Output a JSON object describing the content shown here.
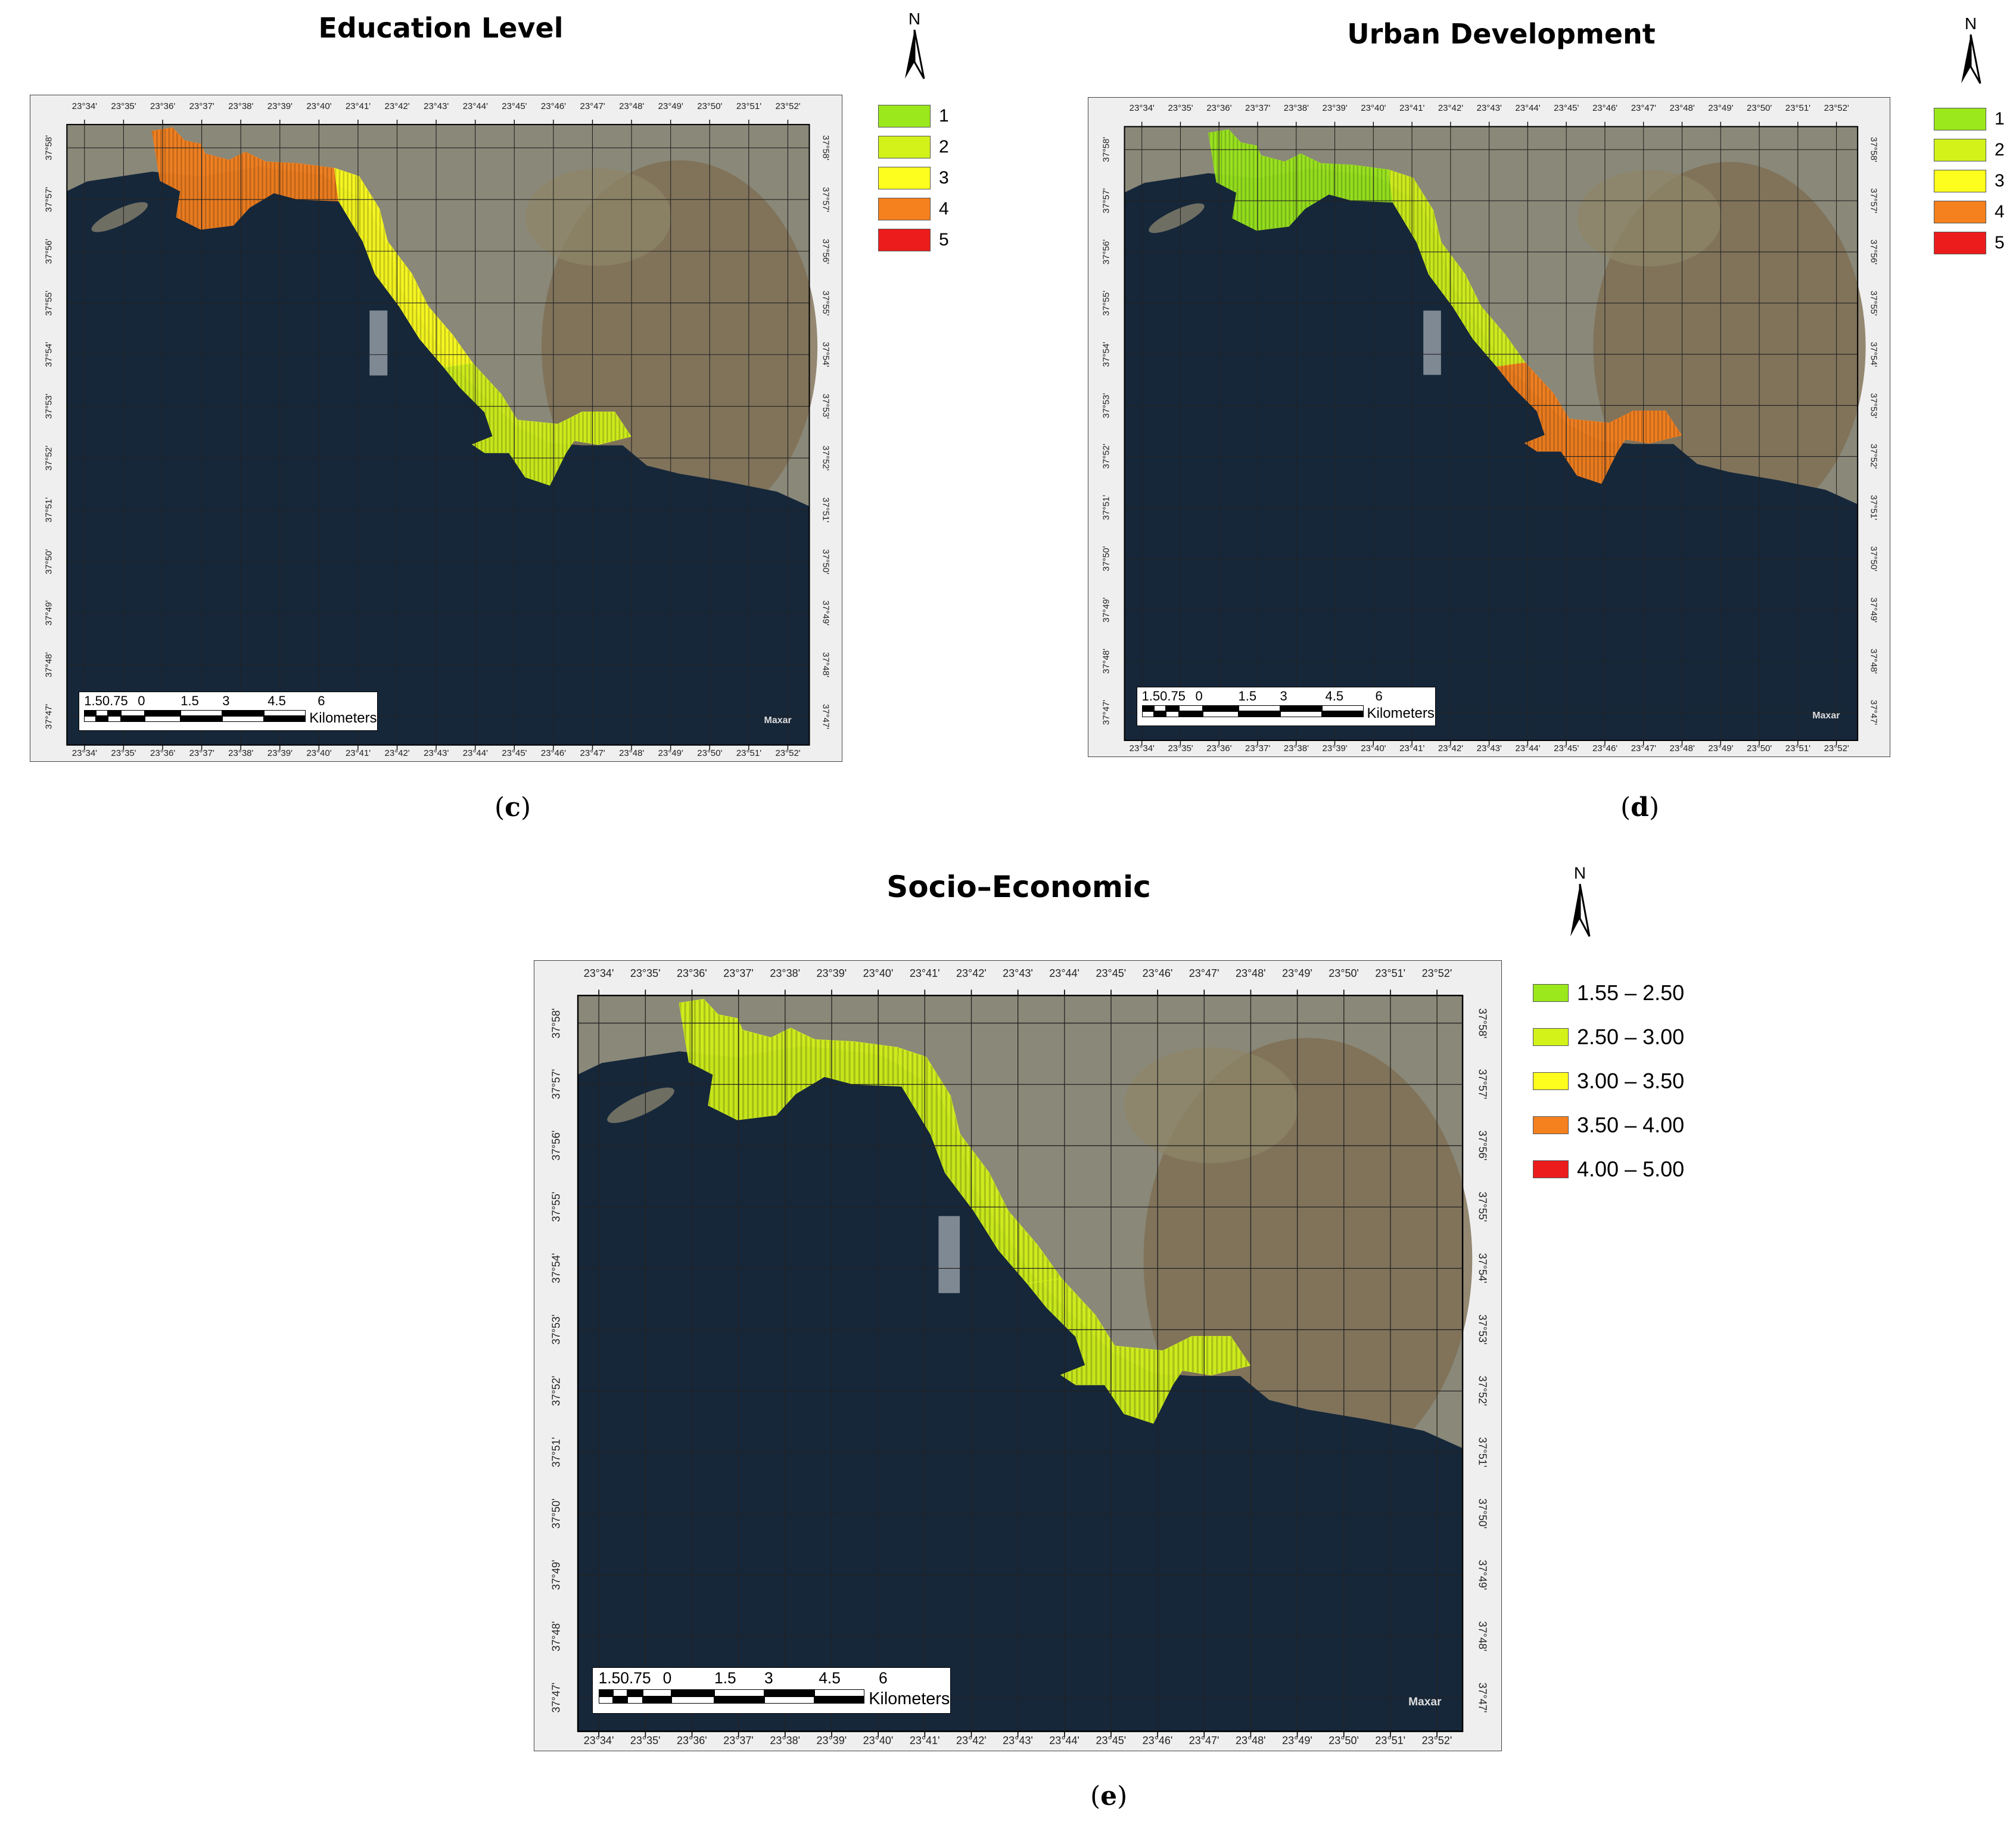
{
  "panels": {
    "c": {
      "title": "Education Level",
      "caption_open": "(",
      "caption_letter": "c",
      "caption_close": ")",
      "legend": [
        "1",
        "2",
        "3",
        "4",
        "5"
      ],
      "coastal_class_segments": [
        4,
        3,
        2
      ]
    },
    "d": {
      "title": "Urban Development",
      "caption_open": "(",
      "caption_letter": "d",
      "caption_close": ")",
      "legend": [
        "1",
        "2",
        "3",
        "4",
        "5"
      ],
      "coastal_class_segments": [
        1,
        2,
        4
      ]
    },
    "e": {
      "title": "Socio–Economic",
      "caption_open": "(",
      "caption_letter": "e",
      "caption_close": ")",
      "legend": [
        "1.55 – 2.50",
        "2.50 – 3.00",
        "3.00 – 3.50",
        "3.50 – 4.00",
        "4.00 – 5.00"
      ],
      "coastal_class_segments": [
        2,
        2,
        2
      ]
    }
  },
  "legend_colors": [
    "#9be81c",
    "#d2f21a",
    "#fdfd1e",
    "#f5801e",
    "#ec1c1c"
  ],
  "north_label": "N",
  "lon_ticks": [
    "23°34'",
    "23°35'",
    "23°36'",
    "23°37'",
    "23°38'",
    "23°39'",
    "23°40'",
    "23°41'",
    "23°42'",
    "23°43'",
    "23°44'",
    "23°45'",
    "23°46'",
    "23°47'",
    "23°48'",
    "23°49'",
    "23°50'",
    "23°51'",
    "23°52'"
  ],
  "lat_ticks": [
    "37°58'",
    "37°57'",
    "37°56'",
    "37°55'",
    "37°54'",
    "37°53'",
    "37°52'",
    "37°51'",
    "37°50'",
    "37°49'",
    "37°48'",
    "37°47'"
  ],
  "scale_numbers": [
    "1.50.75",
    "0",
    "1.5",
    "3",
    "4.5",
    "6"
  ],
  "scale_unit": "Kilometers",
  "imagery_credit": "Maxar",
  "colors": {
    "sea": "#16273a",
    "land": "#8a8878",
    "hills": "#7d6e52",
    "grid": "#222222"
  }
}
